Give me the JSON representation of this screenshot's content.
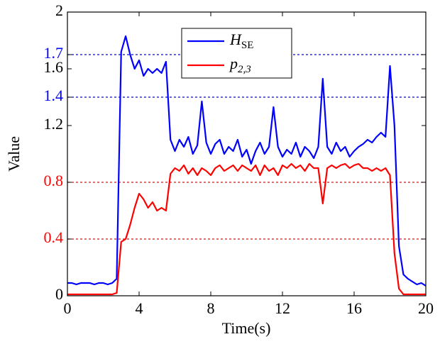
{
  "chart_data": {
    "type": "line",
    "x_label": "Time(s)",
    "y_label": "Value",
    "xlim": [
      0,
      20
    ],
    "ylim": [
      0,
      2
    ],
    "xticks": [
      0,
      4,
      8,
      12,
      16,
      20
    ],
    "yticks": [
      0,
      0.4,
      0.8,
      1.2,
      1.4,
      1.6,
      1.7,
      2
    ],
    "ytick_colors": [
      "#000000",
      "#ff0000",
      "#ff0000",
      "#000000",
      "#0000ff",
      "#000000",
      "#0000ff",
      "#000000"
    ],
    "thresholds": [
      {
        "value": 1.7,
        "color": "#0000ff"
      },
      {
        "value": 1.4,
        "color": "#0000ff"
      },
      {
        "value": 0.8,
        "color": "#ff0000"
      },
      {
        "value": 0.4,
        "color": "#ff0000"
      }
    ],
    "legend": "top",
    "x": [
      0,
      0.25,
      0.5,
      0.75,
      1,
      1.25,
      1.5,
      1.75,
      2,
      2.25,
      2.5,
      2.75,
      3,
      3.25,
      3.5,
      3.75,
      4,
      4.25,
      4.5,
      4.75,
      5,
      5.25,
      5.5,
      5.75,
      6,
      6.25,
      6.5,
      6.75,
      7,
      7.25,
      7.5,
      7.75,
      8,
      8.25,
      8.5,
      8.75,
      9,
      9.25,
      9.5,
      9.75,
      10,
      10.25,
      10.5,
      10.75,
      11,
      11.25,
      11.5,
      11.75,
      12,
      12.25,
      12.5,
      12.75,
      13,
      13.25,
      13.5,
      13.75,
      14,
      14.25,
      14.5,
      14.75,
      15,
      15.25,
      15.5,
      15.75,
      16,
      16.25,
      16.5,
      16.75,
      17,
      17.25,
      17.5,
      17.75,
      18,
      18.25,
      18.5,
      18.75,
      19,
      19.25,
      19.5,
      19.75,
      20
    ],
    "series": [
      {
        "name": {
          "base": "H",
          "sub": "SE"
        },
        "color": "#0000ff",
        "values": [
          0.09,
          0.09,
          0.08,
          0.09,
          0.09,
          0.09,
          0.08,
          0.09,
          0.09,
          0.08,
          0.09,
          0.12,
          1.72,
          1.83,
          1.7,
          1.6,
          1.66,
          1.55,
          1.6,
          1.57,
          1.6,
          1.57,
          1.65,
          1.1,
          1.02,
          1.1,
          1.05,
          1.12,
          1.0,
          1.06,
          1.37,
          1.08,
          1.0,
          1.07,
          1.1,
          1.0,
          1.05,
          1.02,
          1.1,
          0.98,
          1.03,
          0.93,
          1.02,
          1.08,
          1.0,
          1.05,
          1.33,
          1.05,
          0.98,
          1.03,
          1.0,
          1.08,
          0.98,
          1.05,
          1.02,
          0.97,
          1.05,
          1.53,
          1.05,
          1.0,
          1.08,
          1.02,
          1.05,
          0.98,
          1.02,
          1.05,
          1.07,
          1.1,
          1.08,
          1.12,
          1.15,
          1.12,
          1.62,
          1.2,
          0.35,
          0.15,
          0.12,
          0.1,
          0.08,
          0.09,
          0.07
        ]
      },
      {
        "name": {
          "base": "p",
          "sub": "2,3"
        },
        "color": "#ff0000",
        "values": [
          0.01,
          0.01,
          0.01,
          0.01,
          0.01,
          0.01,
          0.01,
          0.01,
          0.01,
          0.01,
          0.01,
          0.02,
          0.38,
          0.4,
          0.5,
          0.62,
          0.72,
          0.68,
          0.62,
          0.66,
          0.6,
          0.62,
          0.6,
          0.86,
          0.9,
          0.88,
          0.92,
          0.86,
          0.9,
          0.85,
          0.9,
          0.88,
          0.85,
          0.9,
          0.92,
          0.88,
          0.9,
          0.92,
          0.88,
          0.92,
          0.9,
          0.88,
          0.92,
          0.85,
          0.92,
          0.88,
          0.9,
          0.85,
          0.92,
          0.9,
          0.93,
          0.9,
          0.92,
          0.88,
          0.93,
          0.9,
          0.9,
          0.65,
          0.9,
          0.92,
          0.9,
          0.92,
          0.93,
          0.9,
          0.92,
          0.93,
          0.9,
          0.9,
          0.88,
          0.9,
          0.88,
          0.9,
          0.85,
          0.3,
          0.05,
          0.01,
          0.01,
          0.01,
          0.01,
          0.01,
          0.01
        ]
      }
    ]
  }
}
